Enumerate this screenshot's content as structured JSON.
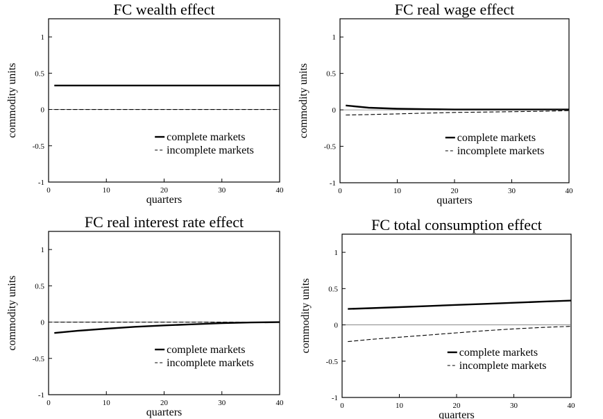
{
  "chart_data": [
    {
      "type": "line",
      "title": "FC wealth effect",
      "xlabel": "quarters",
      "ylabel": "commodity units",
      "xlim": [
        0,
        40
      ],
      "ylim": [
        -1,
        1.25
      ],
      "xticks": [
        "0",
        "10",
        "20",
        "30",
        "40"
      ],
      "yticks": [
        "1",
        "0.5",
        "0",
        "-0.5",
        "-1"
      ],
      "legend": {
        "placement": "bottom-right",
        "entries": [
          "complete markets",
          "incomplete markets"
        ]
      },
      "x": [
        1,
        5,
        10,
        15,
        20,
        25,
        30,
        35,
        40
      ],
      "series": [
        {
          "name": "complete markets",
          "style": "solid-thick",
          "values": [
            0.33,
            0.33,
            0.33,
            0.33,
            0.33,
            0.33,
            0.33,
            0.33,
            0.33
          ]
        },
        {
          "name": "incomplete markets",
          "style": "dashed",
          "values": [
            0,
            0,
            0,
            0,
            0,
            0,
            0,
            0,
            0
          ]
        }
      ]
    },
    {
      "type": "line",
      "title": "FC real wage effect",
      "xlabel": "quarters",
      "ylabel": "commodity units",
      "xlim": [
        0,
        40
      ],
      "ylim": [
        -1,
        1.25
      ],
      "xticks": [
        "0",
        "10",
        "20",
        "30",
        "40"
      ],
      "yticks": [
        "1",
        "0.5",
        "0",
        "-0.5",
        "-1"
      ],
      "legend": {
        "placement": "bottom-right",
        "entries": [
          "complete markets",
          "incomplete markets"
        ]
      },
      "x": [
        1,
        5,
        10,
        15,
        20,
        25,
        30,
        35,
        40
      ],
      "series": [
        {
          "name": "complete markets",
          "style": "solid-thick",
          "values": [
            0.06,
            0.03,
            0.015,
            0.01,
            0.005,
            0.005,
            0.005,
            0.005,
            0.005
          ]
        },
        {
          "name": "incomplete markets",
          "style": "dashed",
          "values": [
            -0.07,
            -0.065,
            -0.055,
            -0.045,
            -0.035,
            -0.03,
            -0.025,
            -0.02,
            -0.01
          ]
        }
      ]
    },
    {
      "type": "line",
      "title": "FC real interest rate effect",
      "xlabel": "quarters",
      "ylabel": "commodity units",
      "xlim": [
        0,
        40
      ],
      "ylim": [
        -1,
        1.25
      ],
      "xticks": [
        "0",
        "10",
        "20",
        "30",
        "40"
      ],
      "yticks": [
        "1",
        "0.5",
        "0",
        "-0.5",
        "-1"
      ],
      "legend": {
        "placement": "bottom-right",
        "entries": [
          "complete markets",
          "incomplete markets"
        ]
      },
      "x": [
        1,
        5,
        10,
        15,
        20,
        25,
        30,
        35,
        40
      ],
      "series": [
        {
          "name": "complete markets",
          "style": "solid-thick",
          "values": [
            -0.15,
            -0.12,
            -0.09,
            -0.065,
            -0.045,
            -0.03,
            -0.015,
            -0.005,
            0
          ]
        },
        {
          "name": "incomplete markets",
          "style": "dashed",
          "values": [
            0,
            0,
            0,
            0,
            0,
            0,
            0,
            0,
            0
          ]
        }
      ]
    },
    {
      "type": "line",
      "title": "FC total consumption effect",
      "xlabel": "quarters",
      "ylabel": "commodity units",
      "xlim": [
        0,
        40
      ],
      "ylim": [
        -1,
        1.25
      ],
      "xticks": [
        "0",
        "10",
        "20",
        "30",
        "40"
      ],
      "yticks": [
        "1",
        "0.5",
        "0",
        "-0.5",
        "-1"
      ],
      "legend": {
        "placement": "bottom-right",
        "entries": [
          "complete markets",
          "incomplete markets"
        ]
      },
      "x": [
        1,
        5,
        10,
        15,
        20,
        25,
        30,
        35,
        40
      ],
      "series": [
        {
          "name": "complete markets",
          "style": "solid-thick",
          "values": [
            0.22,
            0.23,
            0.245,
            0.26,
            0.275,
            0.29,
            0.305,
            0.32,
            0.335
          ]
        },
        {
          "name": "incomplete markets",
          "style": "dashed",
          "values": [
            -0.23,
            -0.2,
            -0.17,
            -0.14,
            -0.11,
            -0.08,
            -0.055,
            -0.035,
            -0.02
          ]
        }
      ]
    }
  ]
}
